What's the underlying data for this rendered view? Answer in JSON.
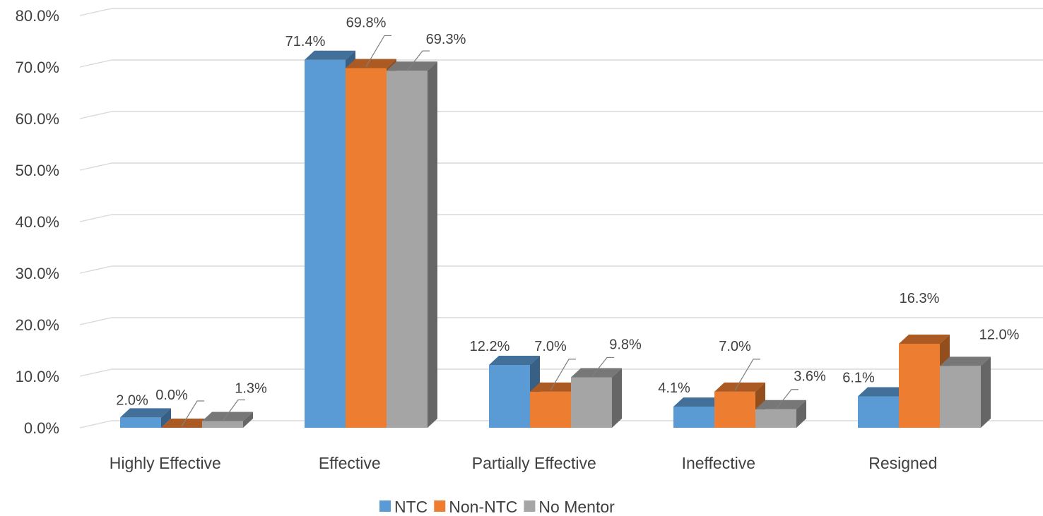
{
  "chart_data": {
    "type": "bar",
    "style": "3d-clustered-column",
    "categories": [
      "Highly Effective",
      "Effective",
      "Partially Effective",
      "Ineffective",
      "Resigned"
    ],
    "series": [
      {
        "name": "NTC",
        "color": "#5b9bd5",
        "values": [
          2.0,
          71.4,
          12.2,
          4.1,
          6.1
        ],
        "labels": [
          "2.0%",
          "71.4%",
          "12.2%",
          "4.1%",
          "6.1%"
        ]
      },
      {
        "name": "Non-NTC",
        "color": "#ed7d31",
        "values": [
          0.0,
          69.8,
          7.0,
          7.0,
          16.3
        ],
        "labels": [
          "0.0%",
          "69.8%",
          "7.0%",
          "7.0%",
          "16.3%"
        ]
      },
      {
        "name": "No Mentor",
        "color": "#a5a5a5",
        "values": [
          1.3,
          69.3,
          9.8,
          3.6,
          12.0
        ],
        "labels": [
          "1.3%",
          "69.3%",
          "9.8%",
          "3.6%",
          "12.0%"
        ]
      }
    ],
    "yticks": [
      "0.0%",
      "10.0%",
      "20.0%",
      "30.0%",
      "40.0%",
      "50.0%",
      "60.0%",
      "70.0%",
      "80.0%"
    ],
    "ylim": [
      0,
      80
    ],
    "title": "",
    "xlabel": "",
    "ylabel": "",
    "grid": true,
    "legend_position": "bottom"
  }
}
